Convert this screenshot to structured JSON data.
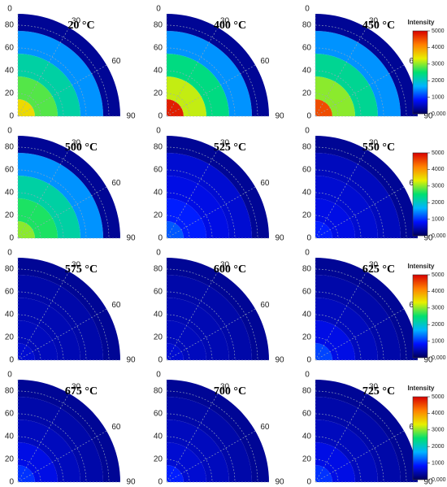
{
  "colormap": [
    "#00005a",
    "#0010ff",
    "#00b4ff",
    "#00e070",
    "#e8f000",
    "#ff8000",
    "#d80000"
  ],
  "colorbars": [
    {
      "title": "Intensity",
      "lim": [
        0,
        5000
      ],
      "ticks": [
        {
          "value": 0,
          "label": "0,000"
        },
        1000,
        2000,
        3000,
        4000,
        5000
      ]
    },
    {
      "lim": [
        0,
        5000
      ],
      "ticks": [
        {
          "value": 0,
          "label": "0,000"
        },
        1000,
        2000,
        3000,
        4000,
        5000
      ]
    },
    {
      "title": "Intensity",
      "lim": [
        0,
        5000
      ],
      "ticks": [
        {
          "value": 0,
          "label": "0,000"
        },
        1000,
        2000,
        3000,
        4000,
        5000
      ]
    },
    {
      "title": "Intensity",
      "lim": [
        0,
        5000
      ],
      "ticks": [
        {
          "value": 0,
          "label": "0,000"
        },
        1000,
        2000,
        3000,
        4000,
        5000
      ]
    }
  ],
  "chart_data": [
    {
      "type": "polar-heatmap",
      "title": "20 °C",
      "r": [
        5,
        25,
        45,
        65,
        85
      ],
      "values": [
        3500,
        2800,
        2200,
        1500,
        300
      ],
      "rlim": [
        0,
        90
      ],
      "rticks": [
        0,
        20,
        40,
        60,
        80
      ],
      "angle_ticks": [
        0,
        30,
        60,
        90
      ]
    },
    {
      "type": "polar-heatmap",
      "title": "400 °C",
      "r": [
        5,
        25,
        45,
        65,
        85
      ],
      "values": [
        4800,
        3200,
        2400,
        1500,
        300
      ],
      "rlim": [
        0,
        90
      ],
      "rticks": [
        0,
        20,
        40,
        60,
        80
      ],
      "angle_ticks": [
        0,
        30,
        60,
        90
      ]
    },
    {
      "type": "polar-heatmap",
      "title": "450 °C",
      "r": [
        5,
        25,
        45,
        65,
        85
      ],
      "values": [
        4500,
        3000,
        2300,
        1500,
        300
      ],
      "rlim": [
        0,
        90
      ],
      "rticks": [
        0,
        20,
        40,
        60,
        80
      ],
      "angle_ticks": [
        0,
        30,
        60,
        90
      ]
    },
    {
      "type": "polar-heatmap",
      "title": "500 °C",
      "r": [
        5,
        25,
        45,
        65,
        85
      ],
      "values": [
        3000,
        2600,
        2200,
        1500,
        300
      ],
      "rlim": [
        0,
        90
      ],
      "rticks": [
        0,
        20,
        40,
        60,
        80
      ],
      "angle_ticks": [
        0,
        30,
        60,
        90
      ]
    },
    {
      "type": "polar-heatmap",
      "title": "525 °C",
      "r": [
        5,
        25,
        45,
        65,
        85
      ],
      "values": [
        1200,
        900,
        700,
        600,
        300
      ],
      "rlim": [
        0,
        90
      ],
      "rticks": [
        0,
        20,
        40,
        60,
        80
      ],
      "angle_ticks": [
        0,
        30,
        60,
        90
      ]
    },
    {
      "type": "polar-heatmap",
      "title": "550 °C",
      "r": [
        5,
        25,
        45,
        65,
        85
      ],
      "values": [
        900,
        700,
        600,
        500,
        300
      ],
      "rlim": [
        0,
        90
      ],
      "rticks": [
        0,
        20,
        40,
        60,
        80
      ],
      "angle_ticks": [
        0,
        30,
        60,
        90
      ]
    },
    {
      "type": "polar-heatmap",
      "title": "575 °C",
      "r": [
        5,
        25,
        45,
        65,
        85
      ],
      "values": [
        600,
        500,
        450,
        400,
        300
      ],
      "rlim": [
        0,
        90
      ],
      "rticks": [
        0,
        20,
        40,
        60,
        80
      ],
      "angle_ticks": [
        0,
        30,
        60,
        90
      ]
    },
    {
      "type": "polar-heatmap",
      "title": "600 °C",
      "r": [
        5,
        25,
        45,
        65,
        85
      ],
      "values": [
        600,
        500,
        450,
        400,
        300
      ],
      "rlim": [
        0,
        90
      ],
      "rticks": [
        0,
        20,
        40,
        60,
        80
      ],
      "angle_ticks": [
        0,
        30,
        60,
        90
      ]
    },
    {
      "type": "polar-heatmap",
      "title": "625 °C",
      "r": [
        5,
        25,
        45,
        65,
        85
      ],
      "values": [
        1100,
        700,
        500,
        400,
        300
      ],
      "rlim": [
        0,
        90
      ],
      "rticks": [
        0,
        20,
        40,
        60,
        80
      ],
      "angle_ticks": [
        0,
        30,
        60,
        90
      ]
    },
    {
      "type": "polar-heatmap",
      "title": "675 °C",
      "r": [
        5,
        25,
        45,
        65,
        85
      ],
      "values": [
        1000,
        700,
        500,
        400,
        300
      ],
      "rlim": [
        0,
        90
      ],
      "rticks": [
        0,
        20,
        40,
        60,
        80
      ],
      "angle_ticks": [
        0,
        30,
        60,
        90
      ]
    },
    {
      "type": "polar-heatmap",
      "title": "700 °C",
      "r": [
        5,
        25,
        45,
        65,
        85
      ],
      "values": [
        900,
        600,
        500,
        400,
        300
      ],
      "rlim": [
        0,
        90
      ],
      "rticks": [
        0,
        20,
        40,
        60,
        80
      ],
      "angle_ticks": [
        0,
        30,
        60,
        90
      ]
    },
    {
      "type": "polar-heatmap",
      "title": "725 °C",
      "r": [
        5,
        25,
        45,
        65,
        85
      ],
      "values": [
        1000,
        700,
        500,
        400,
        300
      ],
      "rlim": [
        0,
        90
      ],
      "rticks": [
        0,
        20,
        40,
        60,
        80
      ],
      "angle_ticks": [
        0,
        30,
        60,
        90
      ]
    }
  ]
}
